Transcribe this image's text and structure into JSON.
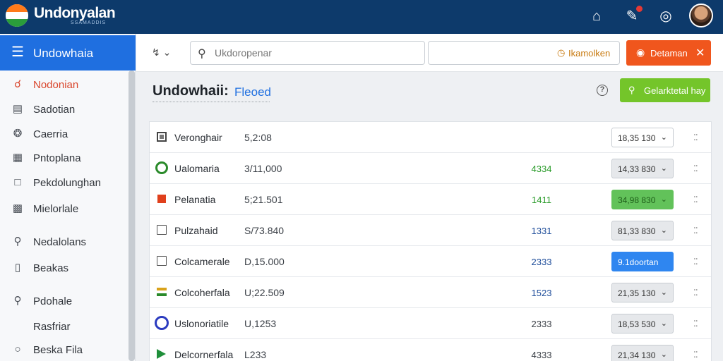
{
  "app": {
    "brand": "Undonyalan",
    "brand_sub": "SSAMADDIS"
  },
  "sidebar": {
    "title": "Undowhaia",
    "items": [
      {
        "label": "Nodonian",
        "icon": "person-icon"
      },
      {
        "label": "Sadotian",
        "icon": "folder-icon"
      },
      {
        "label": "Caerria",
        "icon": "tag-icon"
      },
      {
        "label": "Pntoplana",
        "icon": "grid-icon"
      },
      {
        "label": "Pekdolunghan",
        "icon": "chat-icon"
      },
      {
        "label": "Mielorlale",
        "icon": "document-icon"
      },
      {
        "label": "Nedalolans",
        "icon": "key-icon"
      },
      {
        "label": "Beakas",
        "icon": "bookmark-icon"
      },
      {
        "label": "Pdohale",
        "icon": "user-icon"
      },
      {
        "label": "Rasfriar",
        "icon": ""
      },
      {
        "label": "Beska Fila",
        "icon": "circle-icon"
      }
    ]
  },
  "toolbar": {
    "search_placeholder": "Ukdoropenar",
    "field2_label": "Ikamolken",
    "red_button": "Detaman"
  },
  "header": {
    "title": "Undowhaii:",
    "subtitle": "Fleoed",
    "green_button": "Gelarktetal hay"
  },
  "rows": [
    {
      "name": "Veronghair",
      "code": "5,2:08",
      "num": "",
      "num_color": "",
      "select": "18,35 130",
      "select_style": "white",
      "icon": "sq-dark"
    },
    {
      "name": "Ualomaria",
      "code": "3/11,000",
      "num": "4334",
      "num_color": "green",
      "select": "14,33 830",
      "select_style": "gray",
      "icon": "circle-green"
    },
    {
      "name": "Pelanatia",
      "code": "5;21.501",
      "num": "1411",
      "num_color": "green",
      "select": "34,98 830",
      "select_style": "green",
      "icon": "flag-red"
    },
    {
      "name": "Pulzahaid",
      "code": "S/73.840",
      "num": "1331",
      "num_color": "blue",
      "select": "81,33 830",
      "select_style": "gray",
      "icon": "sq-outline"
    },
    {
      "name": "Colcamerale",
      "code": "D,15.000",
      "num": "2333",
      "num_color": "blue",
      "select": "9.1doortan",
      "select_style": "blue",
      "icon": "sq-outline"
    },
    {
      "name": "Colcoherfala",
      "code": "U;22.509",
      "num": "1523",
      "num_color": "blue",
      "select": "21,35 130",
      "select_style": "gray",
      "icon": "stripe"
    },
    {
      "name": "Uslonoriatile",
      "code": "U,1253",
      "num": "2333",
      "num_color": "dark",
      "select": "18,53 530",
      "select_style": "gray",
      "icon": "circle-blue"
    },
    {
      "name": "Delcornerfala",
      "code": "L233",
      "num": "4333",
      "num_color": "dark",
      "select": "21,34 130",
      "select_style": "gray",
      "icon": "flag-green"
    }
  ]
}
